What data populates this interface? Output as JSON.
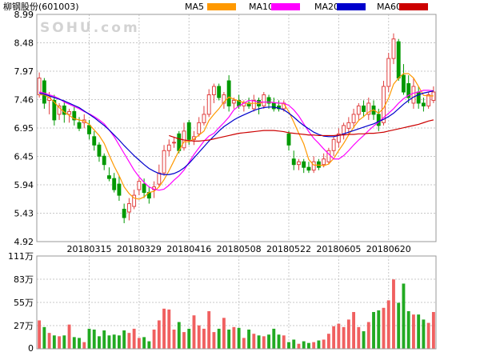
{
  "header": {
    "title": "柳钢股份(601003)",
    "watermark": "SOHU.com",
    "ma_legend": [
      {
        "label": "MA5",
        "color": "#ff9900"
      },
      {
        "label": "MA10",
        "color": "#ff00ff"
      },
      {
        "label": "MA20",
        "color": "#0000cc"
      },
      {
        "label": "MA60",
        "color": "#cc0000"
      }
    ]
  },
  "chart_data": [
    {
      "type": "candlestick",
      "name": "price",
      "ylim": [
        4.92,
        8.99
      ],
      "y_ticks": [
        "8.99",
        "8.48",
        "7.97",
        "7.46",
        "6.95",
        "6.45",
        "5.94",
        "5.43",
        "4.92"
      ],
      "x_tick_labels": [
        {
          "label": "20180315",
          "index": 10
        },
        {
          "label": "20180329",
          "index": 20
        },
        {
          "label": "20180416",
          "index": 30
        },
        {
          "label": "20180508",
          "index": 40
        },
        {
          "label": "20180522",
          "index": 50
        },
        {
          "label": "20180605",
          "index": 60
        },
        {
          "label": "20180620",
          "index": 70
        }
      ],
      "up_color": "#e04040",
      "down_color": "#009900",
      "candles": [
        [
          7.55,
          7.85,
          7.95,
          7.5
        ],
        [
          7.8,
          7.4,
          7.85,
          7.3
        ],
        [
          7.45,
          7.5,
          7.6,
          7.2
        ],
        [
          7.45,
          7.1,
          7.55,
          7.0
        ],
        [
          7.2,
          7.35,
          7.4,
          7.1
        ],
        [
          7.35,
          7.2,
          7.45,
          7.05
        ],
        [
          7.2,
          7.25,
          7.3,
          7.05
        ],
        [
          7.25,
          7.1,
          7.35,
          7.0
        ],
        [
          7.05,
          6.95,
          7.15,
          6.9
        ],
        [
          7.05,
          7.1,
          7.2,
          6.95
        ],
        [
          7.0,
          6.85,
          7.1,
          6.75
        ],
        [
          6.8,
          6.65,
          6.9,
          6.55
        ],
        [
          6.65,
          6.45,
          6.7,
          6.35
        ],
        [
          6.45,
          6.3,
          6.5,
          6.2
        ],
        [
          6.1,
          6.05,
          6.25,
          6.0
        ],
        [
          6.05,
          5.85,
          6.15,
          5.8
        ],
        [
          5.95,
          5.75,
          6.1,
          5.65
        ],
        [
          5.5,
          5.35,
          5.6,
          5.25
        ],
        [
          5.45,
          5.6,
          5.7,
          5.3
        ],
        [
          5.55,
          5.75,
          5.85,
          5.5
        ],
        [
          5.85,
          6.0,
          6.05,
          5.75
        ],
        [
          5.95,
          5.8,
          6.05,
          5.7
        ],
        [
          5.8,
          5.7,
          5.9,
          5.6
        ],
        [
          5.85,
          5.9,
          6.0,
          5.7
        ],
        [
          5.95,
          6.15,
          6.3,
          5.9
        ],
        [
          6.15,
          6.55,
          6.65,
          6.1
        ],
        [
          6.55,
          6.65,
          6.75,
          6.45
        ],
        [
          6.7,
          6.7,
          6.8,
          6.6
        ],
        [
          6.85,
          6.55,
          6.9,
          6.5
        ],
        [
          6.6,
          6.9,
          7.05,
          6.55
        ],
        [
          7.05,
          6.75,
          7.1,
          6.65
        ],
        [
          6.75,
          6.8,
          6.9,
          6.65
        ],
        [
          6.85,
          7.05,
          7.15,
          6.8
        ],
        [
          7.05,
          7.2,
          7.35,
          7.0
        ],
        [
          7.2,
          7.55,
          7.65,
          7.15
        ],
        [
          7.55,
          7.7,
          7.75,
          7.4
        ],
        [
          7.7,
          7.5,
          7.75,
          7.45
        ],
        [
          7.4,
          7.55,
          7.6,
          7.3
        ],
        [
          7.8,
          7.35,
          7.9,
          7.25
        ],
        [
          7.4,
          7.45,
          7.5,
          7.3
        ],
        [
          7.45,
          7.35,
          7.55,
          7.3
        ],
        [
          7.35,
          7.4,
          7.45,
          7.25
        ],
        [
          7.4,
          7.35,
          7.5,
          7.3
        ],
        [
          7.3,
          7.45,
          7.55,
          7.25
        ],
        [
          7.45,
          7.35,
          7.5,
          7.2
        ],
        [
          7.35,
          7.55,
          7.6,
          7.3
        ],
        [
          7.5,
          7.4,
          7.55,
          7.3
        ],
        [
          7.4,
          7.3,
          7.5,
          7.25
        ],
        [
          7.35,
          7.3,
          7.45,
          7.25
        ],
        [
          7.3,
          7.4,
          7.45,
          7.25
        ],
        [
          6.85,
          6.65,
          6.9,
          6.55
        ],
        [
          6.4,
          6.3,
          6.55,
          6.2
        ],
        [
          6.3,
          6.35,
          6.4,
          6.2
        ],
        [
          6.35,
          6.25,
          6.4,
          6.15
        ],
        [
          6.25,
          6.2,
          6.35,
          6.15
        ],
        [
          6.2,
          6.35,
          6.45,
          6.15
        ],
        [
          6.35,
          6.25,
          6.4,
          6.2
        ],
        [
          6.3,
          6.4,
          6.5,
          6.25
        ],
        [
          6.35,
          6.55,
          6.6,
          6.3
        ],
        [
          6.55,
          6.75,
          6.8,
          6.45
        ],
        [
          6.7,
          6.85,
          6.95,
          6.6
        ],
        [
          6.85,
          7.0,
          7.05,
          6.75
        ],
        [
          6.95,
          7.05,
          7.15,
          6.85
        ],
        [
          7.05,
          7.2,
          7.3,
          6.95
        ],
        [
          7.2,
          7.35,
          7.4,
          7.1
        ],
        [
          7.35,
          7.25,
          7.45,
          7.15
        ],
        [
          7.2,
          7.4,
          7.5,
          7.1
        ],
        [
          7.35,
          7.2,
          7.45,
          7.1
        ],
        [
          7.2,
          7.0,
          7.3,
          6.9
        ],
        [
          7.05,
          7.7,
          7.8,
          7.0
        ],
        [
          7.7,
          8.2,
          8.3,
          7.6
        ],
        [
          8.2,
          8.55,
          8.65,
          8.1
        ],
        [
          8.5,
          7.85,
          8.55,
          7.8
        ],
        [
          7.9,
          7.6,
          8.1,
          7.55
        ],
        [
          7.75,
          7.5,
          7.9,
          7.4
        ],
        [
          7.4,
          7.7,
          7.85,
          7.3
        ],
        [
          7.6,
          7.4,
          7.7,
          7.3
        ],
        [
          7.4,
          7.35,
          7.5,
          7.25
        ],
        [
          7.35,
          7.55,
          7.6,
          7.3
        ],
        [
          7.45,
          7.6,
          7.7,
          7.4
        ]
      ],
      "ma5": [
        7.55,
        7.55,
        7.5,
        7.42,
        7.32,
        7.24,
        7.18,
        7.12,
        7.1,
        7.08,
        7.02,
        6.92,
        6.82,
        6.68,
        6.47,
        6.27,
        6.1,
        5.9,
        5.78,
        5.7,
        5.68,
        5.72,
        5.8,
        5.82,
        5.9,
        6.03,
        6.19,
        6.37,
        6.55,
        6.71,
        6.71,
        6.76,
        6.83,
        6.9,
        7.09,
        7.2,
        7.3,
        7.42,
        7.51,
        7.47,
        7.44,
        7.41,
        7.39,
        7.4,
        7.39,
        7.42,
        7.42,
        7.41,
        7.4,
        7.39,
        7.25,
        7.06,
        6.86,
        6.67,
        6.39,
        6.29,
        6.29,
        6.28,
        6.31,
        6.41,
        6.55,
        6.68,
        6.83,
        6.97,
        7.09,
        7.16,
        7.24,
        7.28,
        7.22,
        7.31,
        7.49,
        7.74,
        7.85,
        7.93,
        7.93,
        7.85,
        7.7,
        7.54,
        7.53,
        7.53
      ],
      "ma10": [
        7.6,
        7.58,
        7.55,
        7.52,
        7.48,
        7.42,
        7.38,
        7.34,
        7.3,
        7.25,
        7.21,
        7.16,
        7.1,
        7.03,
        6.92,
        6.8,
        6.65,
        6.5,
        6.35,
        6.2,
        6.08,
        5.98,
        5.9,
        5.86,
        5.84,
        5.86,
        5.93,
        6.02,
        6.1,
        6.2,
        6.34,
        6.48,
        6.6,
        6.72,
        6.81,
        6.86,
        6.96,
        7.05,
        7.15,
        7.28,
        7.35,
        7.4,
        7.45,
        7.44,
        7.42,
        7.42,
        7.42,
        7.41,
        7.4,
        7.4,
        7.36,
        7.28,
        7.17,
        7.03,
        6.89,
        6.77,
        6.68,
        6.58,
        6.49,
        6.4,
        6.4,
        6.46,
        6.55,
        6.65,
        6.74,
        6.82,
        6.91,
        6.99,
        7.06,
        7.14,
        7.22,
        7.3,
        7.4,
        7.48,
        7.54,
        7.58,
        7.6,
        7.63,
        7.63,
        7.62
      ],
      "ma20": [
        7.58,
        7.56,
        7.53,
        7.5,
        7.47,
        7.44,
        7.4,
        7.36,
        7.32,
        7.26,
        7.2,
        7.14,
        7.07,
        7.0,
        6.92,
        6.83,
        6.74,
        6.64,
        6.55,
        6.46,
        6.38,
        6.3,
        6.23,
        6.18,
        6.14,
        6.12,
        6.12,
        6.14,
        6.18,
        6.24,
        6.32,
        6.42,
        6.52,
        6.62,
        6.72,
        6.81,
        6.9,
        6.98,
        7.04,
        7.1,
        7.15,
        7.19,
        7.23,
        7.27,
        7.3,
        7.32,
        7.33,
        7.33,
        7.31,
        7.28,
        7.22,
        7.15,
        7.07,
        7.0,
        6.94,
        6.88,
        6.84,
        6.81,
        6.8,
        6.8,
        6.82,
        6.85,
        6.88,
        6.91,
        6.94,
        6.97,
        7.0,
        7.03,
        7.07,
        7.11,
        7.16,
        7.22,
        7.3,
        7.38,
        7.45,
        7.51,
        7.55,
        7.58,
        7.6,
        7.62
      ],
      "ma60": [
        null,
        null,
        null,
        null,
        null,
        null,
        null,
        null,
        null,
        null,
        null,
        null,
        null,
        null,
        null,
        null,
        null,
        null,
        null,
        null,
        null,
        null,
        null,
        null,
        null,
        null,
        6.82,
        6.79,
        6.76,
        6.74,
        6.73,
        6.72,
        6.72,
        6.73,
        6.74,
        6.76,
        6.78,
        6.8,
        6.82,
        6.84,
        6.86,
        6.87,
        6.88,
        6.89,
        6.9,
        6.91,
        6.91,
        6.91,
        6.9,
        6.89,
        6.87,
        6.86,
        6.85,
        6.84,
        6.83,
        6.83,
        6.82,
        6.82,
        6.82,
        6.82,
        6.83,
        6.83,
        6.84,
        6.84,
        6.85,
        6.85,
        6.86,
        6.86,
        6.87,
        6.88,
        6.9,
        6.92,
        6.94,
        6.96,
        6.98,
        7.0,
        7.02,
        7.05,
        7.08,
        7.1
      ]
    },
    {
      "type": "bar",
      "name": "volume",
      "unit": "万",
      "ylim": [
        0,
        111
      ],
      "y_ticks": [
        "111万",
        "83万",
        "55万",
        "27万",
        "0"
      ],
      "values": [
        34,
        26,
        19,
        16,
        15,
        16,
        29,
        14,
        13,
        8,
        24,
        23,
        15,
        22,
        16,
        17,
        16,
        22,
        19,
        24,
        13,
        14,
        9,
        23,
        34,
        48,
        47,
        23,
        32,
        20,
        24,
        40,
        28,
        24,
        45,
        20,
        24,
        37,
        23,
        26,
        25,
        13,
        23,
        18,
        16,
        15,
        17,
        24,
        17,
        16,
        8,
        11,
        6,
        9,
        7,
        8,
        10,
        11,
        18,
        27,
        30,
        26,
        35,
        44,
        26,
        21,
        32,
        44,
        46,
        49,
        58,
        83,
        55,
        78,
        45,
        41,
        41,
        35,
        31,
        44
      ]
    }
  ]
}
